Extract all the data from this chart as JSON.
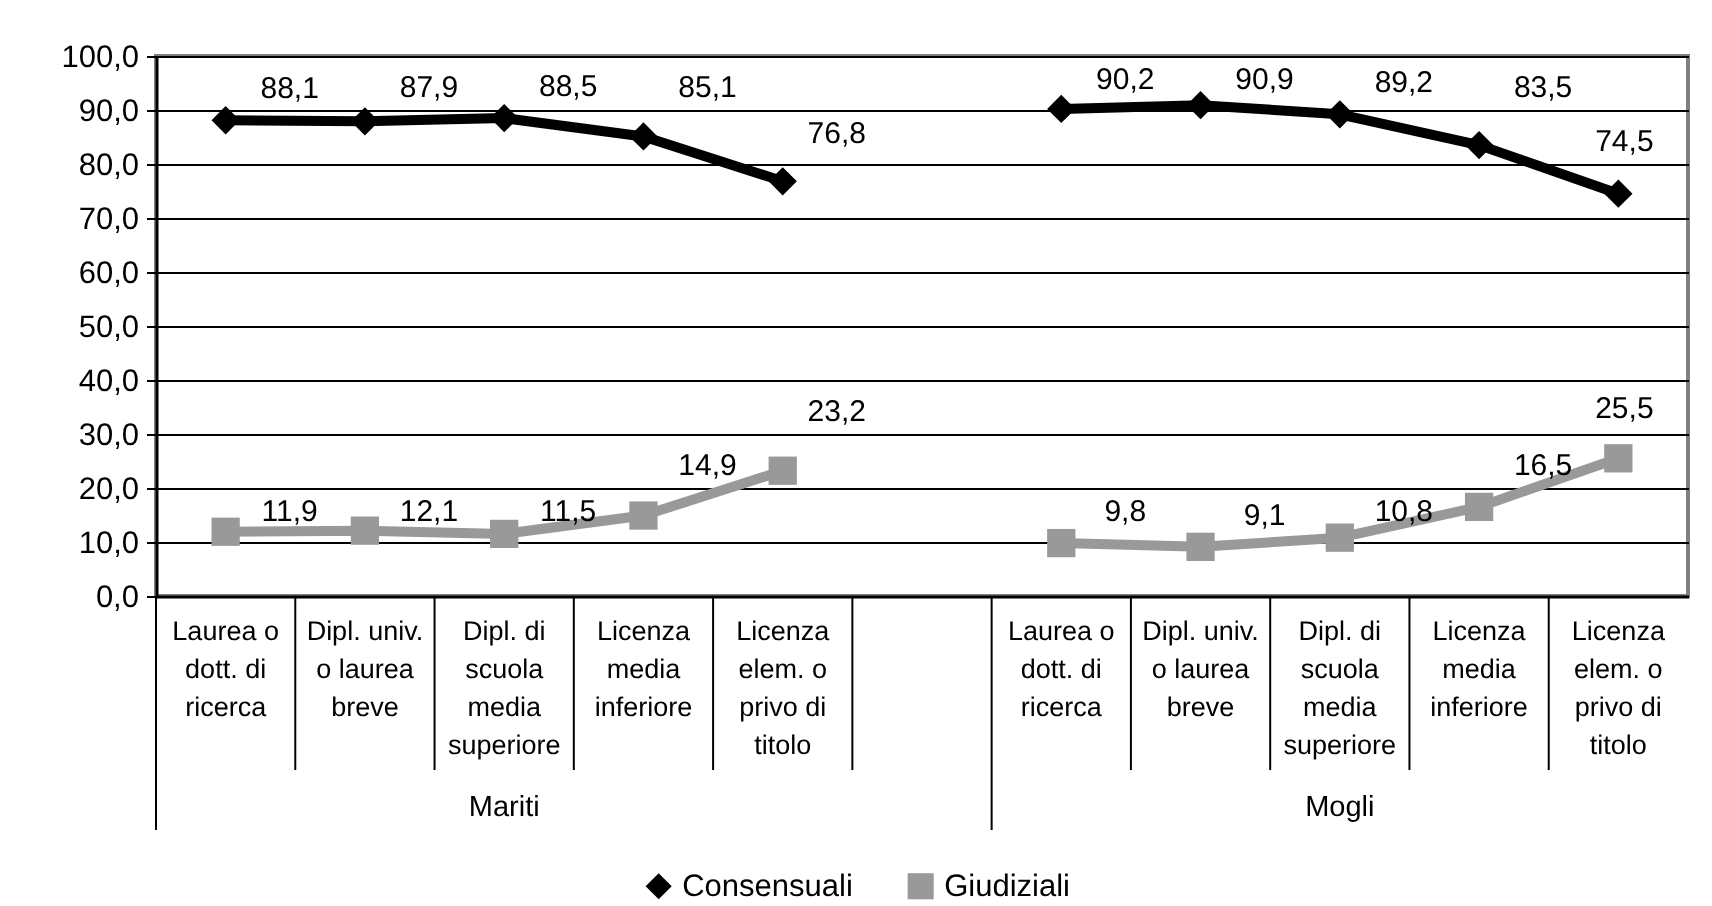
{
  "chart_data": {
    "type": "line",
    "categories": [
      "Laurea o dott. di ricerca",
      "Dipl. univ. o laurea breve",
      "Dipl. di scuola media superiore",
      "Licenza media inferiore",
      "Licenza elem. o privo di titolo",
      null,
      "Laurea o dott. di ricerca",
      "Dipl. univ. o laurea breve",
      "Dipl. di scuola media superiore",
      "Licenza media inferiore",
      "Licenza elem. o privo di titolo"
    ],
    "series": [
      {
        "name": "Consensuali",
        "color": "#000000",
        "marker": "diamond",
        "values": [
          88.1,
          87.9,
          88.5,
          85.1,
          76.8,
          null,
          90.2,
          90.9,
          89.2,
          83.5,
          74.5
        ],
        "value_labels": [
          "88,1",
          "87,9",
          "88,5",
          "85,1",
          "76,8",
          null,
          "90,2",
          "90,9",
          "89,2",
          "83,5",
          "74,5"
        ]
      },
      {
        "name": "Giudiziali",
        "color": "#999999",
        "marker": "square",
        "values": [
          11.9,
          12.1,
          11.5,
          14.9,
          23.2,
          null,
          9.8,
          9.1,
          10.8,
          16.5,
          25.5
        ],
        "value_labels": [
          "11,9",
          "12,1",
          "11,5",
          "14,9",
          "23,2",
          null,
          "9,8",
          "9,1",
          "10,8",
          "16,5",
          "25,5"
        ]
      }
    ],
    "ylim": [
      0,
      100
    ],
    "yticks": [
      {
        "value": 0,
        "label": "0,0"
      },
      {
        "value": 10,
        "label": "10,0"
      },
      {
        "value": 20,
        "label": "20,0"
      },
      {
        "value": 30,
        "label": "30,0"
      },
      {
        "value": 40,
        "label": "40,0"
      },
      {
        "value": 50,
        "label": "50,0"
      },
      {
        "value": 60,
        "label": "60,0"
      },
      {
        "value": 70,
        "label": "70,0"
      },
      {
        "value": 80,
        "label": "80,0"
      },
      {
        "value": 90,
        "label": "90,0"
      },
      {
        "value": 100,
        "label": "100,0"
      }
    ],
    "grid": "y",
    "legend": "bottom",
    "line_style": "solid",
    "annotations": [
      "Mariti",
      "Mogli"
    ]
  }
}
